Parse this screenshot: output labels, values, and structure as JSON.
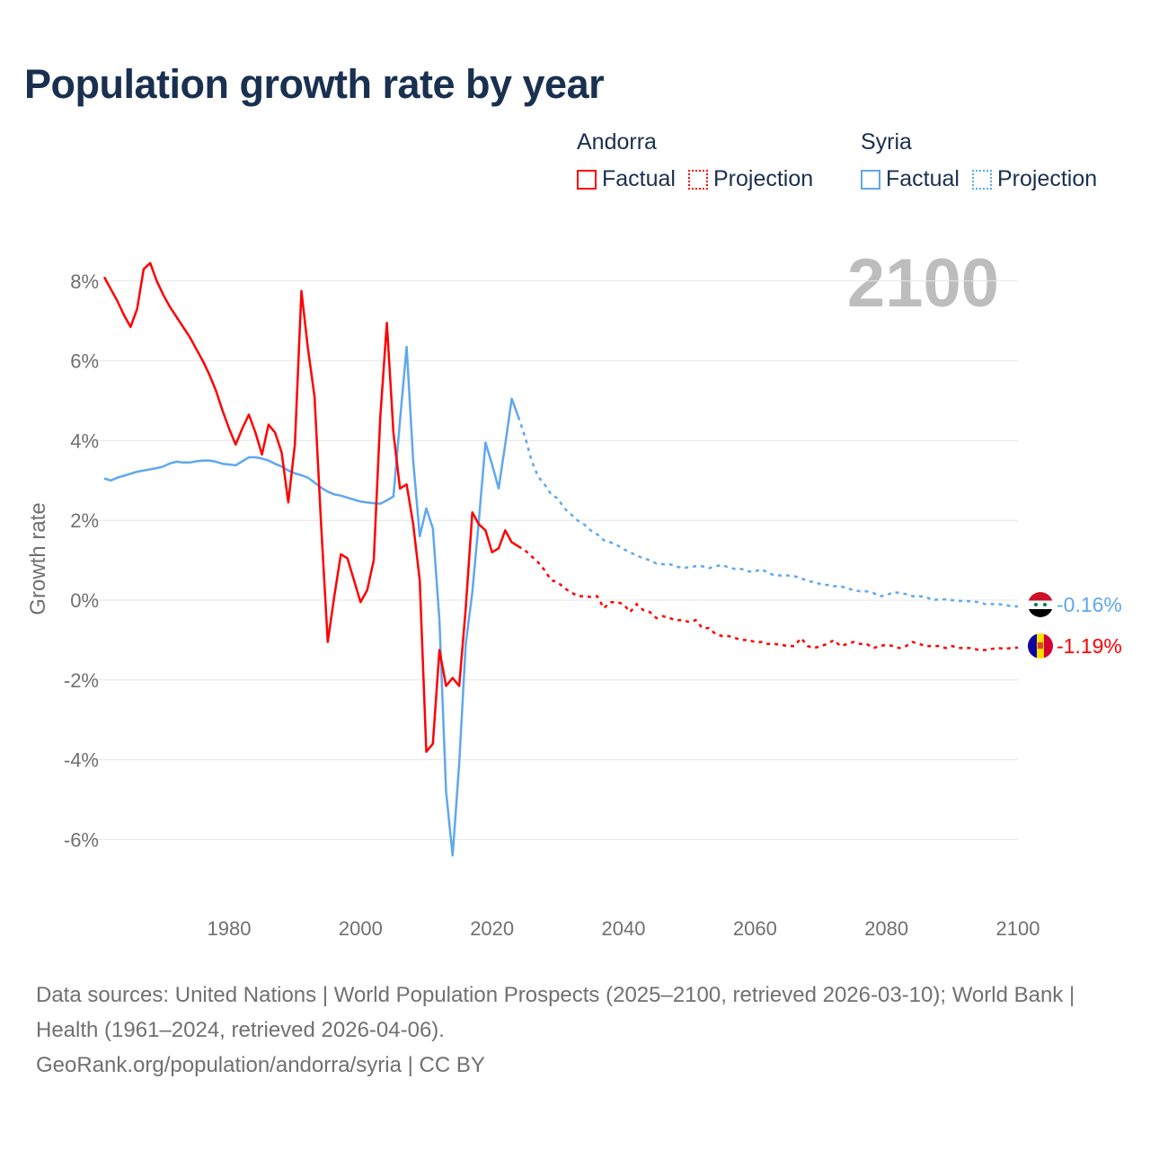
{
  "title": "Population growth rate by year",
  "legend": {
    "groups": [
      {
        "country": "Andorra",
        "factual": "Factual",
        "projection": "Projection",
        "color": "#ff0000"
      },
      {
        "country": "Syria",
        "factual": "Factual",
        "projection": "Projection",
        "color": "#5ea8ee"
      }
    ]
  },
  "year_watermark": "2100",
  "footer": {
    "sources": "Data sources: United Nations | World Population Prospects (2025–2100, retrieved 2026-03-10); World Bank | Health (1961–2024, retrieved 2026-04-06).",
    "credit": "GeoRank.org/population/andorra/syria | CC BY"
  },
  "chart_data": {
    "type": "line",
    "title": "Population growth rate by year",
    "xlabel": "",
    "ylabel": "Growth rate",
    "xlim": [
      1961,
      2100
    ],
    "ylim": [
      -7.5,
      8.8
    ],
    "x_ticks": [
      1980,
      2000,
      2020,
      2040,
      2060,
      2080,
      2100
    ],
    "x_tick_labels": [
      "1980",
      "2000",
      "2020",
      "2040",
      "2060",
      "2080",
      "2100"
    ],
    "y_ticks": [
      -6,
      -4,
      -2,
      0,
      2,
      4,
      6,
      8
    ],
    "y_tick_labels": [
      "-6%",
      "-4%",
      "-2%",
      "0%",
      "2%",
      "4%",
      "6%",
      "8%"
    ],
    "grid": true,
    "legend_position": "top-right",
    "series": [
      {
        "name": "Andorra",
        "color": "#ff0000",
        "end_label": "-1.19%",
        "flag": "andorra-flag",
        "factual": {
          "x_start": 1961,
          "values": [
            8.1,
            7.8,
            7.5,
            7.15,
            6.85,
            7.3,
            8.3,
            8.45,
            8.0,
            7.65,
            7.35,
            7.1,
            6.85,
            6.6,
            6.3,
            6.0,
            5.65,
            5.25,
            4.75,
            4.3,
            3.9,
            4.3,
            4.65,
            4.2,
            3.65,
            4.4,
            4.2,
            3.7,
            2.45,
            3.9,
            7.75,
            6.3,
            5.1,
            1.9,
            -1.05,
            0.1,
            1.15,
            1.05,
            0.5,
            -0.05,
            0.25,
            1.0,
            4.6,
            6.95,
            4.2,
            2.8,
            2.9,
            1.9,
            0.5,
            -3.8,
            -3.6,
            -1.25,
            -2.15,
            -1.95,
            -2.15,
            -0.2,
            2.2,
            1.9,
            1.75,
            1.2,
            1.3,
            1.75,
            1.45,
            1.35
          ]
        },
        "projection": {
          "x_start": 2024,
          "values": [
            1.35,
            1.25,
            1.1,
            0.95,
            0.75,
            0.5,
            0.45,
            0.3,
            0.2,
            0.1,
            0.1,
            0.08,
            0.1,
            -0.2,
            -0.05,
            -0.05,
            -0.1,
            -0.3,
            -0.1,
            -0.25,
            -0.3,
            -0.45,
            -0.4,
            -0.45,
            -0.5,
            -0.5,
            -0.55,
            -0.5,
            -0.7,
            -0.7,
            -0.85,
            -0.9,
            -0.9,
            -0.95,
            -1.0,
            -1.0,
            -1.05,
            -1.05,
            -1.1,
            -1.1,
            -1.12,
            -1.15,
            -1.15,
            -0.95,
            -1.15,
            -1.2,
            -1.15,
            -1.1,
            -1.0,
            -1.15,
            -1.1,
            -1.05,
            -1.1,
            -1.1,
            -1.2,
            -1.15,
            -1.12,
            -1.15,
            -1.2,
            -1.15,
            -1.05,
            -1.1,
            -1.15,
            -1.15,
            -1.15,
            -1.2,
            -1.15,
            -1.2,
            -1.2,
            -1.2,
            -1.25,
            -1.25,
            -1.22,
            -1.2,
            -1.22,
            -1.2,
            -1.19
          ]
        }
      },
      {
        "name": "Syria",
        "color": "#5ea8ee",
        "end_label": "-0.16%",
        "flag": "syria-flag",
        "factual": {
          "x_start": 1961,
          "values": [
            3.05,
            3.0,
            3.07,
            3.12,
            3.17,
            3.22,
            3.25,
            3.28,
            3.31,
            3.35,
            3.43,
            3.47,
            3.45,
            3.45,
            3.48,
            3.5,
            3.5,
            3.47,
            3.42,
            3.4,
            3.38,
            3.48,
            3.58,
            3.58,
            3.55,
            3.5,
            3.42,
            3.35,
            3.25,
            3.18,
            3.13,
            3.07,
            2.95,
            2.82,
            2.72,
            2.65,
            2.62,
            2.57,
            2.52,
            2.47,
            2.45,
            2.43,
            2.42,
            2.5,
            2.6,
            4.5,
            6.35,
            3.5,
            1.6,
            2.3,
            1.8,
            -0.5,
            -4.8,
            -6.4,
            -4.1,
            -1.1,
            0.2,
            2.0,
            3.95,
            3.4,
            2.8,
            3.9,
            5.05,
            4.6
          ]
        },
        "projection": {
          "x_start": 2024,
          "values": [
            4.6,
            4.1,
            3.5,
            3.1,
            2.9,
            2.65,
            2.55,
            2.3,
            2.15,
            2.0,
            1.9,
            1.75,
            1.65,
            1.5,
            1.45,
            1.38,
            1.28,
            1.2,
            1.12,
            1.05,
            1.0,
            0.92,
            0.9,
            0.9,
            0.85,
            0.8,
            0.83,
            0.85,
            0.85,
            0.8,
            0.85,
            0.88,
            0.82,
            0.78,
            0.78,
            0.72,
            0.72,
            0.78,
            0.68,
            0.62,
            0.62,
            0.62,
            0.6,
            0.55,
            0.48,
            0.45,
            0.4,
            0.38,
            0.35,
            0.35,
            0.3,
            0.25,
            0.22,
            0.22,
            0.18,
            0.1,
            0.12,
            0.2,
            0.18,
            0.15,
            0.1,
            0.1,
            0.08,
            0.0,
            0.02,
            0.02,
            0.0,
            -0.02,
            -0.02,
            -0.03,
            -0.05,
            -0.1,
            -0.1,
            -0.1,
            -0.12,
            -0.15,
            -0.16
          ]
        }
      }
    ]
  }
}
